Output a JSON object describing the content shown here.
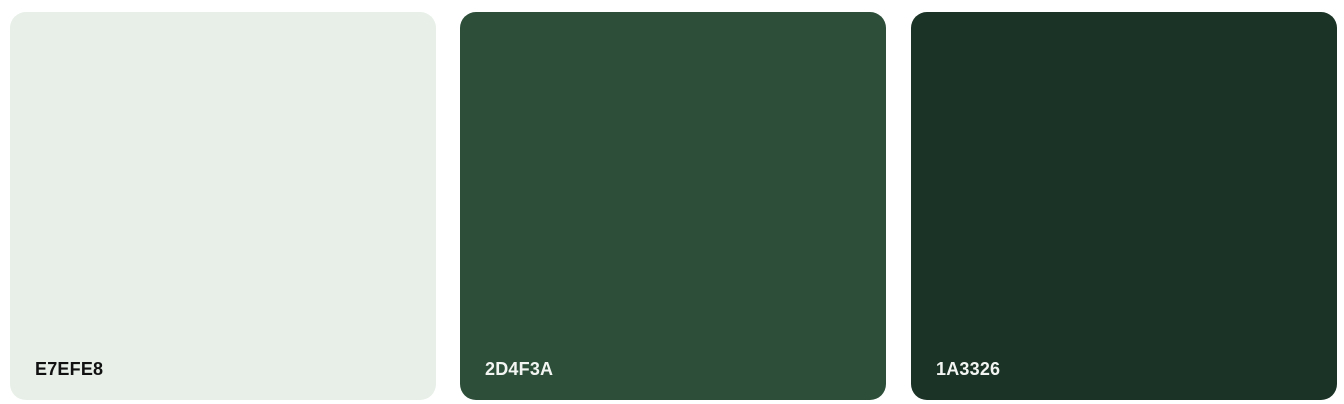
{
  "swatches": [
    {
      "label": "E7EFE8",
      "color": "#E7EFE8",
      "text_color": "#111111"
    },
    {
      "label": "2D4F3A",
      "color": "#2D4F3A",
      "text_color": "#F2F5F2"
    },
    {
      "label": "1A3326",
      "color": "#1A3326",
      "text_color": "#F2F5F2"
    }
  ]
}
